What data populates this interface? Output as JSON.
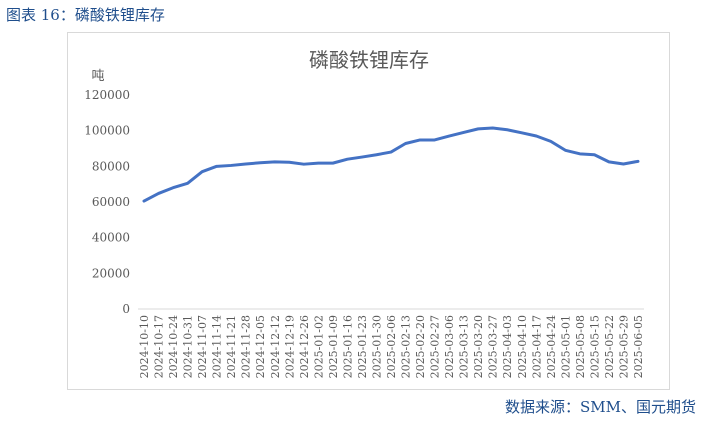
{
  "caption": "图表 16：磷酸铁锂库存",
  "source": "数据来源：SMM、国元期货",
  "chart_data": {
    "type": "line",
    "title": "磷酸铁锂库存",
    "ylabel": "吨",
    "xlabel": "",
    "ylim": [
      0,
      120000
    ],
    "yticks": [
      0,
      20000,
      40000,
      60000,
      80000,
      100000,
      120000
    ],
    "grid": false,
    "line_color": "#4472c4",
    "categories": [
      "2024-10-10",
      "2024-10-17",
      "2024-10-24",
      "2024-10-31",
      "2024-11-07",
      "2024-11-14",
      "2024-11-21",
      "2024-11-28",
      "2024-12-05",
      "2024-12-12",
      "2024-12-19",
      "2024-12-26",
      "2025-01-02",
      "2025-01-09",
      "2025-01-16",
      "2025-01-23",
      "2025-01-30",
      "2025-02-06",
      "2025-02-13",
      "2025-02-20",
      "2025-02-27",
      "2025-03-06",
      "2025-03-13",
      "2025-03-20",
      "2025-03-27",
      "2025-04-03",
      "2025-04-10",
      "2025-04-17",
      "2025-04-24",
      "2025-05-01",
      "2025-05-08",
      "2025-05-15",
      "2025-05-22",
      "2025-05-29",
      "2025-06-05"
    ],
    "series": [
      {
        "values": [
          60500,
          64800,
          68000,
          70500,
          77000,
          80000,
          80500,
          81300,
          82000,
          82500,
          82300,
          81200,
          81800,
          81800,
          84000,
          85200,
          86500,
          88000,
          92800,
          94800,
          94800,
          97000,
          99000,
          101000,
          101500,
          100500,
          98800,
          97000,
          94000,
          89000,
          87000,
          86500,
          82500,
          81300,
          82800
        ]
      }
    ]
  }
}
